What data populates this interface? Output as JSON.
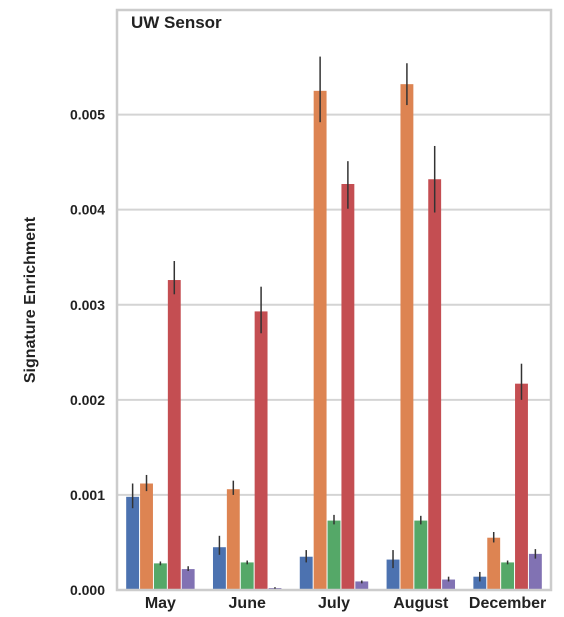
{
  "chart_data": {
    "type": "bar",
    "title": "UW Sensor",
    "xlabel": "",
    "ylabel": "Signature Enrichment",
    "ylim": [
      0,
      0.0061
    ],
    "yticks": [
      "0.000",
      "0.001",
      "0.002",
      "0.003",
      "0.004",
      "0.005"
    ],
    "ytick_values": [
      0,
      0.001,
      0.002,
      0.003,
      0.004,
      0.005
    ],
    "grid": true,
    "legend": "none",
    "categories": [
      "May",
      "June",
      "July",
      "August",
      "December"
    ],
    "series": [
      {
        "color": "#4c72b0",
        "values": [
          0.00098,
          0.00045,
          0.00035,
          0.00032,
          0.00014
        ],
        "err_low": [
          0.00086,
          0.00037,
          0.00029,
          0.00023,
          9e-05
        ],
        "err_high": [
          0.00112,
          0.00057,
          0.00042,
          0.00042,
          0.00019
        ]
      },
      {
        "color": "#dd8452",
        "values": [
          0.00112,
          0.00106,
          0.00525,
          0.00532,
          0.00055
        ],
        "err_low": [
          0.00104,
          0.001,
          0.00492,
          0.0051,
          0.0005
        ],
        "err_high": [
          0.00121,
          0.00115,
          0.00561,
          0.00554,
          0.00061
        ]
      },
      {
        "color": "#55a868",
        "values": [
          0.00028,
          0.00029,
          0.00073,
          0.00073,
          0.00029
        ],
        "err_low": [
          0.00026,
          0.00027,
          0.00069,
          0.00069,
          0.00027
        ],
        "err_high": [
          0.0003,
          0.00031,
          0.00079,
          0.00078,
          0.00031
        ]
      },
      {
        "color": "#c44e52",
        "values": [
          0.00326,
          0.00293,
          0.00427,
          0.00432,
          0.00217
        ],
        "err_low": [
          0.00311,
          0.0027,
          0.00401,
          0.00397,
          0.002
        ],
        "err_high": [
          0.00346,
          0.00319,
          0.00451,
          0.00467,
          0.00238
        ]
      },
      {
        "color": "#8172b3",
        "values": [
          0.00022,
          2e-05,
          9e-05,
          0.00011,
          0.00038
        ],
        "err_low": [
          0.0002,
          1e-05,
          7e-05,
          9e-05,
          0.00033
        ],
        "err_high": [
          0.00025,
          3e-05,
          0.0001,
          0.00014,
          0.00043
        ]
      }
    ]
  }
}
